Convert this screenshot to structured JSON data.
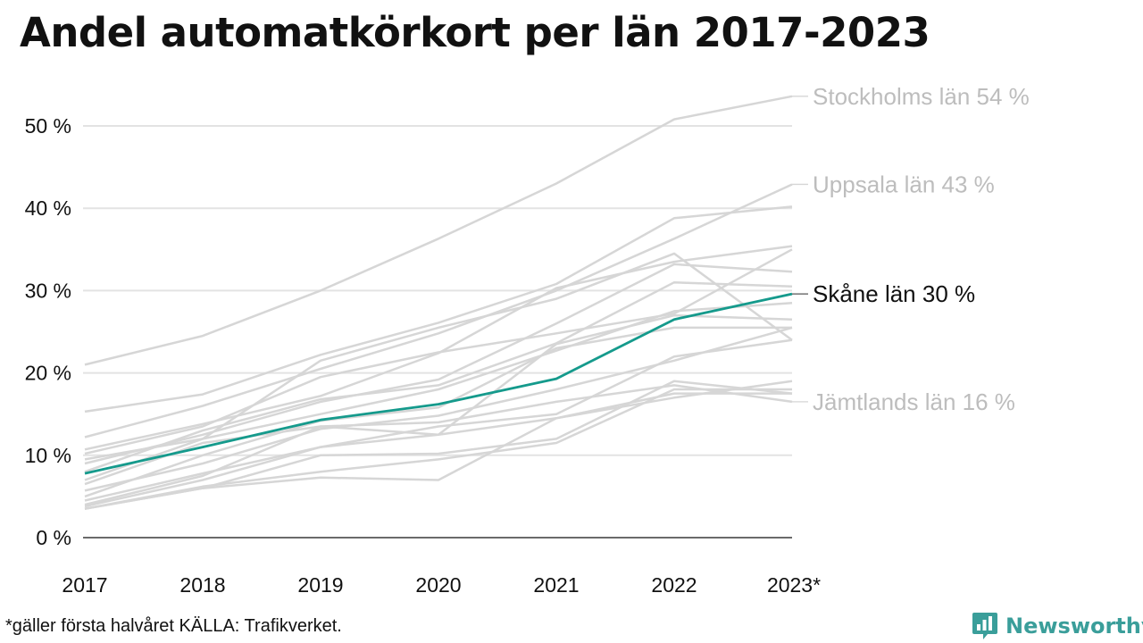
{
  "title": "Andel automatkörkort per län 2017-2023",
  "footnote": "*gäller första halvåret KÄLLA: Trafikverket.",
  "brand": {
    "name": "Newsworthy",
    "color": "#3a9e9a"
  },
  "colors": {
    "highlight": "#159a8c",
    "background_lines": "#d6d6d6",
    "label_gray": "#bdbdbd",
    "axis": "#111111"
  },
  "chart_data": {
    "type": "line",
    "title": "Andel automatkörkort per län 2017-2023",
    "xlabel": "",
    "ylabel": "",
    "categories": [
      "2017",
      "2018",
      "2019",
      "2020",
      "2021",
      "2022",
      "2023*"
    ],
    "y_ticks": [
      0,
      10,
      20,
      30,
      40,
      50
    ],
    "y_tick_labels": [
      "0 %",
      "10 %",
      "20 %",
      "30 %",
      "40 %",
      "50 %"
    ],
    "ylim": [
      0,
      55
    ],
    "grid": true,
    "highlight": {
      "name": "Skåne län",
      "label": "Skåne län 30 %",
      "values": [
        7.8,
        11.0,
        14.3,
        16.2,
        19.3,
        26.5,
        29.6
      ]
    },
    "labeled_series": [
      {
        "name": "Stockholms län",
        "label": "Stockholms län 54 %",
        "values": [
          21.0,
          24.5,
          30.0,
          36.3,
          43.0,
          50.8,
          53.6
        ]
      },
      {
        "name": "Uppsala län",
        "label": "Uppsala län 43 %",
        "values": [
          12.2,
          16.0,
          20.5,
          24.8,
          30.0,
          36.3,
          42.9
        ]
      },
      {
        "name": "Jämtlands län",
        "label": "Jämtlands län 16 %",
        "values": [
          4.0,
          7.5,
          13.5,
          14.0,
          16.5,
          18.5,
          16.5
        ]
      }
    ],
    "background_series": [
      {
        "values": [
          15.3,
          17.4,
          22.2,
          26.1,
          30.8,
          38.8,
          40.2
        ]
      },
      {
        "values": [
          10.7,
          13.8,
          17.2,
          22.4,
          30.3,
          33.5,
          35.4
        ]
      },
      {
        "values": [
          10.2,
          13.5,
          19.5,
          22.5,
          24.8,
          27.2,
          35.0
        ]
      },
      {
        "values": [
          9.5,
          12.0,
          21.5,
          25.5,
          29.0,
          34.5,
          24.0
        ]
      },
      {
        "values": [
          9.0,
          12.5,
          16.5,
          19.2,
          26.0,
          33.2,
          32.3
        ]
      },
      {
        "values": [
          8.0,
          13.0,
          16.8,
          18.5,
          23.6,
          31.0,
          30.5
        ]
      },
      {
        "values": [
          7.0,
          12.0,
          15.0,
          18.0,
          22.7,
          27.5,
          28.5
        ]
      },
      {
        "values": [
          6.5,
          11.5,
          13.5,
          12.5,
          23.5,
          27.0,
          26.5
        ]
      },
      {
        "values": [
          5.0,
          10.0,
          14.2,
          15.8,
          23.0,
          25.5,
          25.5
        ]
      },
      {
        "values": [
          5.7,
          9.0,
          13.2,
          14.8,
          18.0,
          21.5,
          25.5
        ]
      },
      {
        "values": [
          4.5,
          7.8,
          11.0,
          13.5,
          15.0,
          22.0,
          24.0
        ]
      },
      {
        "values": [
          3.5,
          6.0,
          10.0,
          10.2,
          12.0,
          19.0,
          17.5
        ]
      },
      {
        "values": [
          3.8,
          7.0,
          11.0,
          12.5,
          14.5,
          17.0,
          19.0
        ]
      },
      {
        "values": [
          3.5,
          6.2,
          8.0,
          9.5,
          11.5,
          18.0,
          18.0
        ]
      },
      {
        "values": [
          3.5,
          6.0,
          7.3,
          7.0,
          14.5,
          17.5,
          17.5
        ]
      }
    ]
  }
}
